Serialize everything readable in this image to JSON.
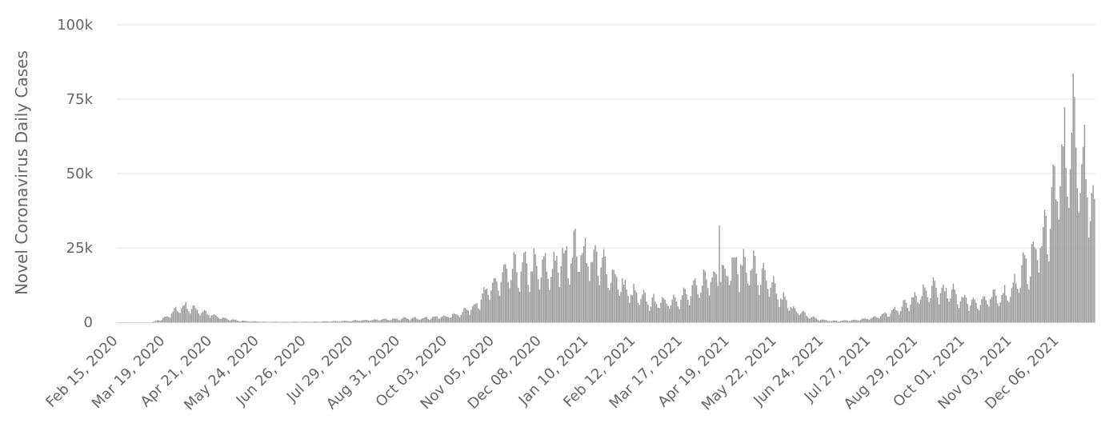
{
  "chart_data": {
    "type": "bar",
    "ylabel": "Novel Coronavirus Daily Cases",
    "xlabel": "",
    "title": "",
    "ylim": [
      0,
      100000
    ],
    "yticks": [
      {
        "value": 0,
        "label": "0"
      },
      {
        "value": 25000,
        "label": "25k"
      },
      {
        "value": 50000,
        "label": "50k"
      },
      {
        "value": 75000,
        "label": "75k"
      },
      {
        "value": 100000,
        "label": "100k"
      }
    ],
    "xticks": [
      "Feb 15, 2020",
      "Mar 19, 2020",
      "Apr 21, 2020",
      "May 24, 2020",
      "Jun 26, 2020",
      "Jul 29, 2020",
      "Aug 31, 2020",
      "Oct 03, 2020",
      "Nov 05, 2020",
      "Dec 08, 2020",
      "Jan 10, 2021",
      "Feb 12, 2021",
      "Mar 17, 2021",
      "Apr 19, 2021",
      "May 22, 2021",
      "Jun 24, 2021",
      "Jul 27, 2021",
      "Aug 29, 2021",
      "Oct 01, 2021",
      "Nov 03, 2021",
      "Dec 06, 2021"
    ],
    "x_start": "2020-02-15",
    "x_end": "2021-12-31",
    "grid": true,
    "legend": "none",
    "bar_color": "#999999",
    "weekly_profile": [
      1.0,
      0.75,
      0.6,
      0.85,
      1.05,
      1.2,
      1.15
    ],
    "weekly_averages": [
      {
        "date": "2020-02-15",
        "value": 0
      },
      {
        "date": "2020-03-10",
        "value": 0
      },
      {
        "date": "2020-03-17",
        "value": 1000
      },
      {
        "date": "2020-03-24",
        "value": 3000
      },
      {
        "date": "2020-03-31",
        "value": 5500
      },
      {
        "date": "2020-04-07",
        "value": 5000
      },
      {
        "date": "2020-04-14",
        "value": 3800
      },
      {
        "date": "2020-04-21",
        "value": 2400
      },
      {
        "date": "2020-04-28",
        "value": 1500
      },
      {
        "date": "2020-05-05",
        "value": 900
      },
      {
        "date": "2020-05-12",
        "value": 500
      },
      {
        "date": "2020-05-19",
        "value": 300
      },
      {
        "date": "2020-05-26",
        "value": 200
      },
      {
        "date": "2020-06-02",
        "value": 150
      },
      {
        "date": "2020-06-16",
        "value": 150
      },
      {
        "date": "2020-06-30",
        "value": 200
      },
      {
        "date": "2020-07-14",
        "value": 300
      },
      {
        "date": "2020-07-28",
        "value": 500
      },
      {
        "date": "2020-08-11",
        "value": 800
      },
      {
        "date": "2020-08-25",
        "value": 1100
      },
      {
        "date": "2020-09-08",
        "value": 1300
      },
      {
        "date": "2020-09-22",
        "value": 1600
      },
      {
        "date": "2020-10-06",
        "value": 2200
      },
      {
        "date": "2020-10-13",
        "value": 3300
      },
      {
        "date": "2020-10-20",
        "value": 5000
      },
      {
        "date": "2020-10-27",
        "value": 8000
      },
      {
        "date": "2020-11-03",
        "value": 12000
      },
      {
        "date": "2020-11-10",
        "value": 15000
      },
      {
        "date": "2020-11-17",
        "value": 17000
      },
      {
        "date": "2020-11-24",
        "value": 18000
      },
      {
        "date": "2020-12-01",
        "value": 18500
      },
      {
        "date": "2020-12-08",
        "value": 18000
      },
      {
        "date": "2020-12-15",
        "value": 18500
      },
      {
        "date": "2020-12-22",
        "value": 21000
      },
      {
        "date": "2020-12-29",
        "value": 24000
      },
      {
        "date": "2021-01-05",
        "value": 25000
      },
      {
        "date": "2021-01-12",
        "value": 22000
      },
      {
        "date": "2021-01-19",
        "value": 20000
      },
      {
        "date": "2021-01-26",
        "value": 17000
      },
      {
        "date": "2021-02-02",
        "value": 13000
      },
      {
        "date": "2021-02-09",
        "value": 10000
      },
      {
        "date": "2021-02-16",
        "value": 8500
      },
      {
        "date": "2021-02-23",
        "value": 7000
      },
      {
        "date": "2021-03-02",
        "value": 7000
      },
      {
        "date": "2021-03-09",
        "value": 7500
      },
      {
        "date": "2021-03-16",
        "value": 8500
      },
      {
        "date": "2021-03-23",
        "value": 10000
      },
      {
        "date": "2021-03-30",
        "value": 13000
      },
      {
        "date": "2021-04-06",
        "value": 16000
      },
      {
        "date": "2021-04-13",
        "value": 17500
      },
      {
        "date": "2021-04-20",
        "value": 19000
      },
      {
        "date": "2021-04-27",
        "value": 20000
      },
      {
        "date": "2021-05-04",
        "value": 19000
      },
      {
        "date": "2021-05-11",
        "value": 16000
      },
      {
        "date": "2021-05-18",
        "value": 12500
      },
      {
        "date": "2021-05-25",
        "value": 8500
      },
      {
        "date": "2021-06-01",
        "value": 5500
      },
      {
        "date": "2021-06-08",
        "value": 3300
      },
      {
        "date": "2021-06-15",
        "value": 1800
      },
      {
        "date": "2021-06-22",
        "value": 900
      },
      {
        "date": "2021-06-29",
        "value": 500
      },
      {
        "date": "2021-07-06",
        "value": 500
      },
      {
        "date": "2021-07-13",
        "value": 700
      },
      {
        "date": "2021-07-20",
        "value": 1000
      },
      {
        "date": "2021-07-27",
        "value": 1500
      },
      {
        "date": "2021-08-03",
        "value": 2200
      },
      {
        "date": "2021-08-10",
        "value": 3200
      },
      {
        "date": "2021-08-17",
        "value": 5000
      },
      {
        "date": "2021-08-24",
        "value": 7000
      },
      {
        "date": "2021-08-31",
        "value": 9500
      },
      {
        "date": "2021-09-07",
        "value": 11000
      },
      {
        "date": "2021-09-14",
        "value": 11000
      },
      {
        "date": "2021-09-21",
        "value": 10000
      },
      {
        "date": "2021-09-28",
        "value": 8500
      },
      {
        "date": "2021-10-05",
        "value": 7000
      },
      {
        "date": "2021-10-12",
        "value": 7000
      },
      {
        "date": "2021-10-19",
        "value": 8000
      },
      {
        "date": "2021-10-26",
        "value": 9000
      },
      {
        "date": "2021-11-02",
        "value": 11000
      },
      {
        "date": "2021-11-09",
        "value": 16000
      },
      {
        "date": "2021-11-16",
        "value": 21000
      },
      {
        "date": "2021-11-23",
        "value": 27000
      },
      {
        "date": "2021-11-30",
        "value": 38000
      },
      {
        "date": "2021-12-07",
        "value": 52000
      },
      {
        "date": "2021-12-14",
        "value": 62000
      },
      {
        "date": "2021-12-21",
        "value": 58000
      },
      {
        "date": "2021-12-28",
        "value": 45000
      },
      {
        "date": "2021-12-31",
        "value": 35000
      }
    ],
    "daily_values": [
      {
        "date": "2021-04-12",
        "value": 32500
      },
      {
        "date": "2021-12-17",
        "value": 75800
      },
      {
        "date": "2021-12-31",
        "value": 41500
      }
    ]
  }
}
